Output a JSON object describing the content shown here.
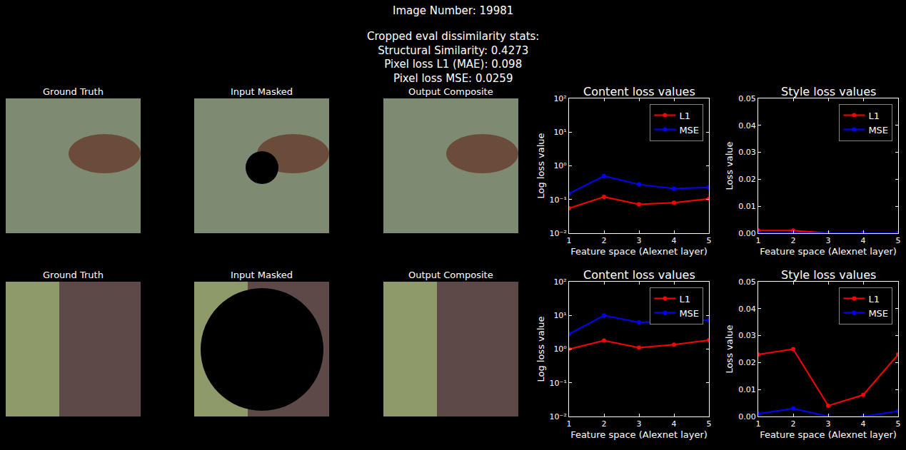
{
  "figure_title": "Image Number: 19981",
  "subtitle": [
    "Cropped eval dissimilarity stats:",
    "Structural Similarity: 0.4273",
    "Pixel loss L1 (MAE): 0.098",
    "Pixel loss MSE: 0.0259"
  ],
  "image_rows": [
    {
      "titles": [
        "Ground Truth",
        "Input Masked",
        "Output Composite"
      ]
    },
    {
      "titles": [
        "Ground Truth",
        "Input Masked",
        "Output Composite"
      ]
    }
  ],
  "chart_data": [
    {
      "type": "line",
      "title": "Content loss values",
      "xlabel": "Feature space (Alexnet layer)",
      "ylabel": "Log loss value",
      "log": "y",
      "grid": false,
      "legend": "upper right",
      "marker": "circle",
      "x": [
        1,
        2,
        3,
        4,
        5
      ],
      "xlim": [
        1,
        5
      ],
      "xticks": [
        1,
        2,
        3,
        4,
        5
      ],
      "ylim": [
        0.01,
        100
      ],
      "yticks": [
        {
          "value": 0.01,
          "label": "10⁻²"
        },
        {
          "value": 0.1,
          "label": "10⁻¹"
        },
        {
          "value": 1,
          "label": "10⁰"
        },
        {
          "value": 10,
          "label": "10¹"
        },
        {
          "value": 100,
          "label": "10²"
        }
      ],
      "series": [
        {
          "name": "L1",
          "color": "#ff0000",
          "values": [
            0.055,
            0.12,
            0.072,
            0.08,
            0.105
          ]
        },
        {
          "name": "MSE",
          "color": "#0000ff",
          "values": [
            0.15,
            0.5,
            0.28,
            0.21,
            0.23
          ]
        }
      ]
    },
    {
      "type": "line",
      "title": "Style loss values",
      "xlabel": "Feature space (Alexnet layer)",
      "ylabel": "Loss value",
      "grid": false,
      "legend": "upper right",
      "marker": "circle",
      "x": [
        1,
        2,
        3,
        4,
        5
      ],
      "xlim": [
        1,
        5
      ],
      "xticks": [
        1,
        2,
        3,
        4,
        5
      ],
      "ylim": [
        0,
        0.05
      ],
      "yticks": [
        {
          "value": 0,
          "label": "0.00"
        },
        0.01,
        0.02,
        0.03,
        0.04,
        0.05
      ],
      "series": [
        {
          "name": "L1",
          "color": "#ff0000",
          "values": [
            0.001,
            0.001,
            0,
            0,
            0
          ]
        },
        {
          "name": "MSE",
          "color": "#0000ff",
          "values": [
            0,
            0,
            0,
            0,
            0
          ]
        }
      ]
    },
    {
      "type": "line",
      "title": "Content loss values",
      "xlabel": "Feature space (Alexnet layer)",
      "ylabel": "Log loss value",
      "log": "y",
      "grid": false,
      "legend": "upper right",
      "marker": "circle",
      "x": [
        1,
        2,
        3,
        4,
        5
      ],
      "xlim": [
        1,
        5
      ],
      "xticks": [
        1,
        2,
        3,
        4,
        5
      ],
      "ylim": [
        0.01,
        100
      ],
      "yticks": [
        {
          "value": 0.01,
          "label": "10⁻²"
        },
        {
          "value": 0.1,
          "label": "10⁻¹"
        },
        {
          "value": 1,
          "label": "10⁰"
        },
        {
          "value": 10,
          "label": "10¹"
        },
        {
          "value": 100,
          "label": "10²"
        }
      ],
      "series": [
        {
          "name": "L1",
          "color": "#ff0000",
          "values": [
            1.0,
            1.8,
            1.1,
            1.35,
            1.85
          ]
        },
        {
          "name": "MSE",
          "color": "#0000ff",
          "values": [
            2.8,
            10,
            6.2,
            6.8,
            7.2
          ]
        }
      ]
    },
    {
      "type": "line",
      "title": "Style loss values",
      "xlabel": "Feature space (Alexnet layer)",
      "ylabel": "Loss value",
      "grid": false,
      "legend": "upper right",
      "marker": "circle",
      "x": [
        1,
        2,
        3,
        4,
        5
      ],
      "xlim": [
        1,
        5
      ],
      "xticks": [
        1,
        2,
        3,
        4,
        5
      ],
      "ylim": [
        0,
        0.05
      ],
      "yticks": [
        {
          "value": 0,
          "label": "0.00"
        },
        0.01,
        0.02,
        0.03,
        0.04,
        0.05
      ],
      "series": [
        {
          "name": "L1",
          "color": "#ff0000",
          "values": [
            0.023,
            0.025,
            0.004,
            0.008,
            0.023
          ]
        },
        {
          "name": "MSE",
          "color": "#0000ff",
          "values": [
            0.001,
            0.003,
            0,
            0,
            0.002
          ]
        }
      ]
    }
  ]
}
